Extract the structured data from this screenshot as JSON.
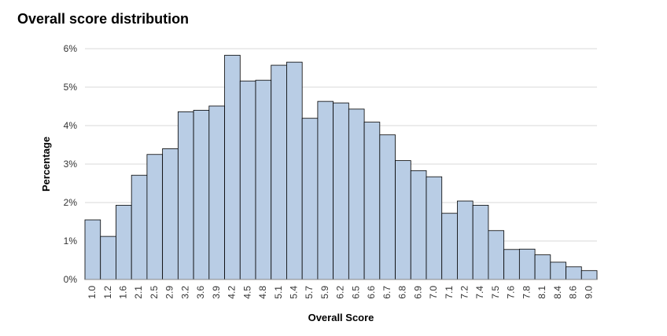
{
  "chart_data": {
    "type": "bar",
    "title": "Overall score distribution",
    "xlabel": "Overall Score",
    "ylabel": "Percentage",
    "ylim": [
      0,
      6
    ],
    "yticks": [
      "0%",
      "1%",
      "2%",
      "3%",
      "4%",
      "5%",
      "6%"
    ],
    "grid": true,
    "bar_color": "#b9cde5",
    "bar_edge_color": "#000000",
    "categories": [
      "1.0",
      "1.2",
      "1.6",
      "2.1",
      "2.5",
      "2.9",
      "3.2",
      "3.6",
      "3.9",
      "4.2",
      "4.5",
      "4.8",
      "5.1",
      "5.4",
      "5.7",
      "5.9",
      "6.2",
      "6.5",
      "6.6",
      "6.7",
      "6.8",
      "6.9",
      "7.0",
      "7.1",
      "7.2",
      "7.4",
      "7.5",
      "7.6",
      "7.8",
      "8.1",
      "8.4",
      "8.6",
      "9.0"
    ],
    "values": [
      1.55,
      1.12,
      1.93,
      2.71,
      3.25,
      3.4,
      4.36,
      4.4,
      4.51,
      5.83,
      5.16,
      5.18,
      5.57,
      5.65,
      4.19,
      4.63,
      4.59,
      4.43,
      4.09,
      3.76,
      3.09,
      2.83,
      2.67,
      1.72,
      2.04,
      1.93,
      1.27,
      0.78,
      0.79,
      0.64,
      0.45,
      0.33,
      0.23
    ]
  }
}
